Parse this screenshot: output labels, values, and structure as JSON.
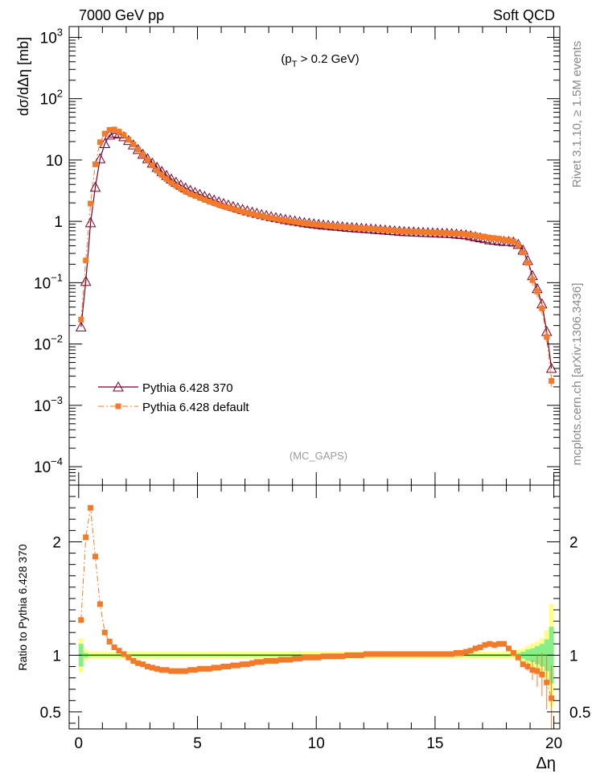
{
  "header": {
    "left": "7000 GeV pp",
    "right": "Soft QCD"
  },
  "side_labels": {
    "top": "Rivet 3.1.10, ≥ 1.5M events",
    "bottom": "mcplots.cern.ch [arXiv:1306.3436]"
  },
  "chart_data": [
    {
      "type": "line",
      "panel": "main",
      "cut_label": {
        "prefix": "(p",
        "sub": "T",
        "suffix": " > 0.2 GeV)"
      },
      "watermark": "(MC_GAPS)",
      "ylabel": "dσ/dΔη [mb]",
      "yscale": "log",
      "xlim": [
        -0.4,
        20.25
      ],
      "ylim": [
        5e-05,
        1500
      ],
      "yticks": [
        {
          "value": 1000,
          "base": "10",
          "exp": "3"
        },
        {
          "value": 100,
          "base": "10",
          "exp": "2"
        },
        {
          "value": 10,
          "base": "10",
          "exp": ""
        },
        {
          "value": 1,
          "base": "1",
          "exp": ""
        },
        {
          "value": 0.1,
          "base": "10",
          "exp": "−1"
        },
        {
          "value": 0.01,
          "base": "10",
          "exp": "−2"
        },
        {
          "value": 0.001,
          "base": "10",
          "exp": "−3"
        },
        {
          "value": 0.0001,
          "base": "10",
          "exp": "−4"
        }
      ],
      "legend_position": "lower-left",
      "x": [
        0.1,
        0.3,
        0.5,
        0.7,
        0.9,
        1.1,
        1.3,
        1.5,
        1.7,
        1.9,
        2.1,
        2.3,
        2.5,
        2.7,
        2.9,
        3.1,
        3.3,
        3.5,
        3.7,
        3.9,
        4.1,
        4.3,
        4.5,
        4.7,
        4.9,
        5.1,
        5.3,
        5.5,
        5.7,
        5.9,
        6.1,
        6.3,
        6.5,
        6.7,
        6.9,
        7.1,
        7.3,
        7.5,
        7.7,
        7.9,
        8.1,
        8.3,
        8.5,
        8.7,
        8.9,
        9.1,
        9.3,
        9.5,
        9.7,
        9.9,
        10.1,
        10.3,
        10.5,
        10.7,
        10.9,
        11.1,
        11.3,
        11.5,
        11.7,
        11.9,
        12.1,
        12.3,
        12.5,
        12.7,
        12.9,
        13.1,
        13.3,
        13.5,
        13.7,
        13.9,
        14.1,
        14.3,
        14.5,
        14.7,
        14.9,
        15.1,
        15.3,
        15.5,
        15.7,
        15.9,
        16.1,
        16.3,
        16.5,
        16.7,
        16.9,
        17.1,
        17.3,
        17.5,
        17.7,
        17.9,
        18.1,
        18.3,
        18.5,
        18.7,
        18.9,
        19.1,
        19.3,
        19.5,
        19.7,
        19.9
      ],
      "series": [
        {
          "name": "Pythia 6.428 370",
          "color": "#7a0026",
          "marker": "open-triangle",
          "line": "solid",
          "values": [
            0.019,
            0.105,
            0.95,
            3.6,
            10.5,
            18.5,
            25.5,
            27.5,
            26.5,
            24.0,
            20.8,
            17.6,
            14.8,
            12.4,
            10.5,
            8.9,
            7.6,
            6.5,
            5.6,
            4.9,
            4.35,
            3.9,
            3.5,
            3.2,
            2.95,
            2.75,
            2.55,
            2.38,
            2.22,
            2.08,
            1.95,
            1.84,
            1.74,
            1.65,
            1.56,
            1.48,
            1.41,
            1.35,
            1.29,
            1.24,
            1.19,
            1.15,
            1.11,
            1.07,
            1.04,
            1.01,
            0.98,
            0.95,
            0.93,
            0.91,
            0.89,
            0.87,
            0.86,
            0.84,
            0.83,
            0.815,
            0.8,
            0.79,
            0.78,
            0.77,
            0.76,
            0.75,
            0.74,
            0.73,
            0.72,
            0.71,
            0.7,
            0.69,
            0.68,
            0.675,
            0.67,
            0.665,
            0.66,
            0.655,
            0.65,
            0.645,
            0.64,
            0.635,
            0.63,
            0.62,
            0.61,
            0.6,
            0.58,
            0.56,
            0.54,
            0.52,
            0.5,
            0.49,
            0.48,
            0.47,
            0.47,
            0.46,
            0.42,
            0.34,
            0.23,
            0.13,
            0.08,
            0.045,
            0.016,
            0.004
          ]
        },
        {
          "name": "Pythia 6.428 default",
          "color": "#f47a2a",
          "marker": "filled-square",
          "line": "dashdot",
          "values": [
            0.025,
            0.23,
            1.95,
            8.5,
            19.5,
            27.0,
            31.0,
            31.5,
            29.0,
            25.5,
            21.5,
            18.0,
            14.8,
            12.2,
            10.0,
            8.2,
            6.7,
            5.7,
            4.9,
            4.25,
            3.8,
            3.4,
            3.05,
            2.8,
            2.6,
            2.42,
            2.25,
            2.1,
            1.98,
            1.86,
            1.76,
            1.67,
            1.59,
            1.51,
            1.44,
            1.38,
            1.32,
            1.27,
            1.22,
            1.17,
            1.13,
            1.09,
            1.06,
            1.03,
            1.0,
            0.975,
            0.95,
            0.93,
            0.91,
            0.89,
            0.875,
            0.86,
            0.845,
            0.83,
            0.82,
            0.81,
            0.8,
            0.79,
            0.78,
            0.77,
            0.765,
            0.755,
            0.745,
            0.735,
            0.725,
            0.715,
            0.705,
            0.695,
            0.685,
            0.68,
            0.675,
            0.67,
            0.665,
            0.66,
            0.655,
            0.65,
            0.645,
            0.64,
            0.635,
            0.63,
            0.625,
            0.615,
            0.6,
            0.59,
            0.57,
            0.56,
            0.54,
            0.53,
            0.52,
            0.5,
            0.49,
            0.47,
            0.41,
            0.31,
            0.21,
            0.11,
            0.072,
            0.038,
            0.013,
            0.0025
          ]
        }
      ]
    },
    {
      "type": "line",
      "panel": "ratio",
      "ylabel": "Ratio to Pythia 6.428 370",
      "xlabel": "Δη",
      "xlim": [
        -0.4,
        20.25
      ],
      "ylim": [
        0.35,
        2.5
      ],
      "xticks": [
        0,
        5,
        10,
        15,
        20
      ],
      "yticks": [
        0.5,
        1,
        2
      ],
      "reference": {
        "value": 1.0,
        "color": "#007700"
      },
      "band": {
        "green_half_width": [
          0.1,
          0.02,
          0.01,
          0.01,
          0.01,
          0.01,
          0.01,
          0.01,
          0.01,
          0.01,
          0.01,
          0.01,
          0.01,
          0.01,
          0.01,
          0.01,
          0.01,
          0.01,
          0.01,
          0.01,
          0.01,
          0.01,
          0.01,
          0.01,
          0.01,
          0.01,
          0.01,
          0.01,
          0.01,
          0.01,
          0.01,
          0.01,
          0.01,
          0.01,
          0.01,
          0.01,
          0.01,
          0.01,
          0.01,
          0.01,
          0.01,
          0.01,
          0.01,
          0.01,
          0.01,
          0.01,
          0.01,
          0.01,
          0.01,
          0.01,
          0.01,
          0.01,
          0.01,
          0.01,
          0.01,
          0.01,
          0.01,
          0.01,
          0.01,
          0.01,
          0.01,
          0.01,
          0.01,
          0.01,
          0.01,
          0.01,
          0.01,
          0.01,
          0.01,
          0.01,
          0.01,
          0.01,
          0.01,
          0.01,
          0.01,
          0.01,
          0.01,
          0.01,
          0.01,
          0.01,
          0.01,
          0.01,
          0.01,
          0.01,
          0.01,
          0.01,
          0.01,
          0.01,
          0.01,
          0.01,
          0.01,
          0.01,
          0.02,
          0.03,
          0.05,
          0.06,
          0.08,
          0.1,
          0.14,
          0.25
        ],
        "yellow_half_width": [
          0.15,
          0.05,
          0.03,
          0.03,
          0.03,
          0.03,
          0.03,
          0.03,
          0.03,
          0.03,
          0.03,
          0.03,
          0.03,
          0.03,
          0.03,
          0.03,
          0.03,
          0.03,
          0.03,
          0.03,
          0.03,
          0.03,
          0.03,
          0.03,
          0.03,
          0.03,
          0.03,
          0.03,
          0.03,
          0.03,
          0.03,
          0.03,
          0.03,
          0.03,
          0.03,
          0.03,
          0.03,
          0.03,
          0.03,
          0.03,
          0.03,
          0.03,
          0.03,
          0.03,
          0.03,
          0.03,
          0.03,
          0.03,
          0.03,
          0.03,
          0.03,
          0.03,
          0.03,
          0.03,
          0.03,
          0.03,
          0.03,
          0.03,
          0.03,
          0.03,
          0.03,
          0.03,
          0.03,
          0.03,
          0.03,
          0.03,
          0.03,
          0.03,
          0.03,
          0.03,
          0.03,
          0.03,
          0.03,
          0.03,
          0.03,
          0.03,
          0.03,
          0.03,
          0.03,
          0.03,
          0.03,
          0.03,
          0.03,
          0.03,
          0.03,
          0.03,
          0.03,
          0.03,
          0.03,
          0.03,
          0.03,
          0.03,
          0.05,
          0.06,
          0.08,
          0.1,
          0.12,
          0.15,
          0.22,
          0.45
        ]
      },
      "series": [
        {
          "name": "Pythia 6.428 default",
          "color": "#f47a2a",
          "values": [
            1.31,
            2.04,
            2.3,
            1.87,
            1.45,
            1.2,
            1.12,
            1.07,
            1.04,
            1.01,
            0.98,
            0.95,
            0.93,
            0.92,
            0.9,
            0.89,
            0.88,
            0.87,
            0.87,
            0.86,
            0.86,
            0.86,
            0.86,
            0.87,
            0.87,
            0.88,
            0.88,
            0.88,
            0.89,
            0.89,
            0.9,
            0.9,
            0.91,
            0.91,
            0.92,
            0.92,
            0.93,
            0.94,
            0.94,
            0.95,
            0.95,
            0.95,
            0.96,
            0.96,
            0.96,
            0.97,
            0.97,
            0.98,
            0.98,
            0.98,
            0.98,
            0.99,
            0.99,
            0.99,
            0.99,
            0.99,
            1.0,
            1.0,
            1.0,
            1.0,
            1.01,
            1.01,
            1.01,
            1.01,
            1.01,
            1.01,
            1.01,
            1.01,
            1.01,
            1.01,
            1.01,
            1.01,
            1.01,
            1.01,
            1.01,
            1.01,
            1.01,
            1.01,
            1.01,
            1.02,
            1.02,
            1.03,
            1.04,
            1.06,
            1.07,
            1.09,
            1.1,
            1.09,
            1.1,
            1.1,
            1.06,
            1.02,
            0.98,
            0.92,
            0.9,
            0.87,
            0.86,
            0.83,
            0.76,
            0.62
          ]
        }
      ]
    }
  ]
}
